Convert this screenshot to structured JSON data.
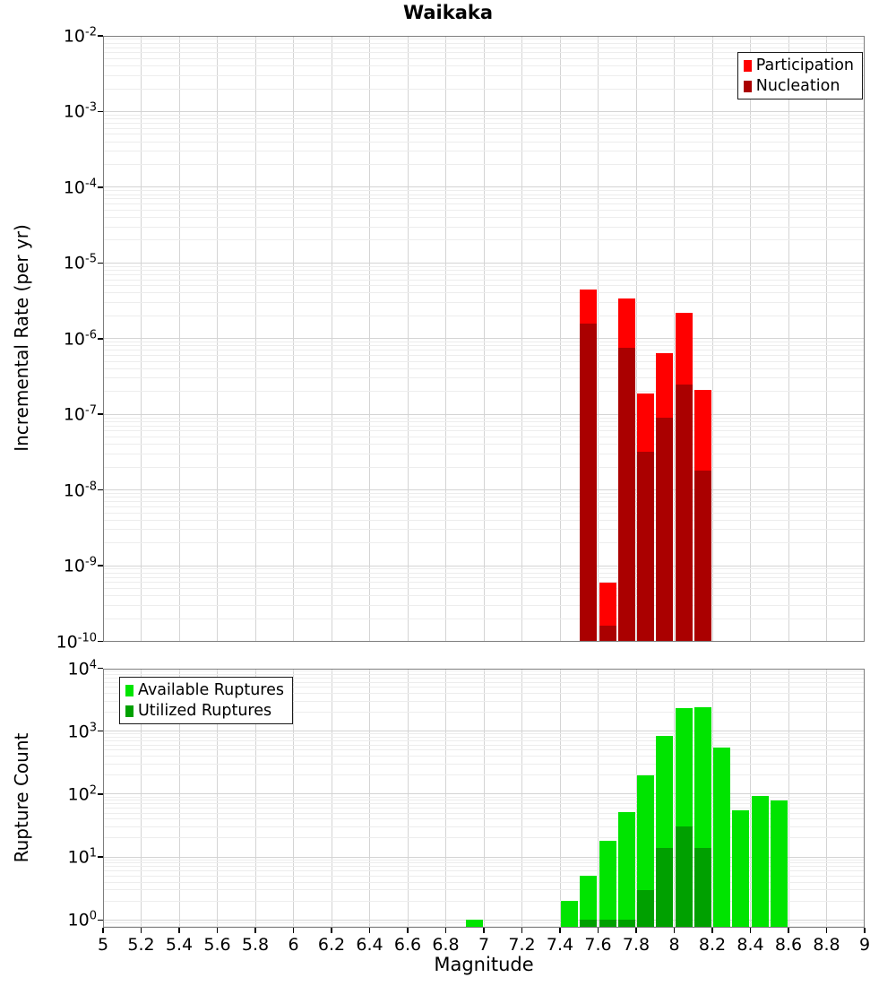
{
  "title": "Waikaka",
  "xlabel": "Magnitude",
  "chart_data": [
    {
      "type": "bar",
      "panel": "incremental-rate",
      "ylabel": "Incremental Rate (per yr)",
      "x_range": [
        5,
        9
      ],
      "y_range_log": [
        -10,
        -2
      ],
      "y_tick_exps": [
        -2,
        -3,
        -4,
        -5,
        -6,
        -7,
        -8,
        -9,
        -10
      ],
      "x_tick_values": [
        5,
        5.2,
        5.4,
        5.6,
        5.8,
        6,
        6.2,
        6.4,
        6.6,
        6.8,
        7,
        7.2,
        7.4,
        7.6,
        7.8,
        8,
        8.2,
        8.4,
        8.6,
        8.8,
        9
      ],
      "x_tick_labels": [
        "5",
        "5.2",
        "5.4",
        "5.6",
        "5.8",
        "6",
        "6.2",
        "6.4",
        "6.6",
        "6.8",
        "7",
        "7.2",
        "7.4",
        "7.6",
        "7.8",
        "8",
        "8.2",
        "8.4",
        "8.6",
        "8.8",
        "9"
      ],
      "show_x_tick_labels": false,
      "bin_width": 0.1,
      "legend_position": "top-right",
      "series": [
        {
          "name": "Participation",
          "color": "#ff0000",
          "x": [
            7.55,
            7.65,
            7.75,
            7.85,
            7.95,
            8.05,
            8.15
          ],
          "values": [
            4.4e-06,
            6e-10,
            3.4e-06,
            1.9e-07,
            6.5e-07,
            2.2e-06,
            2.1e-07
          ]
        },
        {
          "name": "Nucleation",
          "color": "#aa0000",
          "x": [
            7.55,
            7.65,
            7.75,
            7.85,
            7.95,
            8.05,
            8.15
          ],
          "values": [
            1.6e-06,
            1.6e-10,
            7.5e-07,
            3.2e-08,
            9e-08,
            2.5e-07,
            1.8e-08
          ]
        }
      ]
    },
    {
      "type": "bar",
      "panel": "rupture-count",
      "ylabel": "Rupture Count",
      "xlabel": "Magnitude",
      "x_range": [
        5,
        9
      ],
      "y_range_log": [
        -0.117,
        4
      ],
      "y_tick_exps": [
        4,
        3,
        2,
        1,
        0
      ],
      "x_tick_values": [
        5,
        5.2,
        5.4,
        5.6,
        5.8,
        6,
        6.2,
        6.4,
        6.6,
        6.8,
        7,
        7.2,
        7.4,
        7.6,
        7.8,
        8,
        8.2,
        8.4,
        8.6,
        8.8,
        9
      ],
      "x_tick_labels": [
        "5",
        "5.2",
        "5.4",
        "5.6",
        "5.8",
        "6",
        "6.2",
        "6.4",
        "6.6",
        "6.8",
        "7",
        "7.2",
        "7.4",
        "7.6",
        "7.8",
        "8",
        "8.2",
        "8.4",
        "8.6",
        "8.8",
        "9"
      ],
      "show_x_tick_labels": true,
      "bin_width": 0.1,
      "legend_position": "top-left",
      "series": [
        {
          "name": "Available Ruptures",
          "color": "#00e400",
          "x": [
            6.95,
            7.45,
            7.55,
            7.65,
            7.75,
            7.85,
            7.95,
            8.05,
            8.15,
            8.25,
            8.35,
            8.45,
            8.55
          ],
          "values": [
            1,
            2,
            5,
            18,
            52,
            200,
            830,
            2300,
            2400,
            540,
            56,
            93,
            80
          ]
        },
        {
          "name": "Utilized Ruptures",
          "color": "#00a000",
          "x": [
            7.55,
            7.65,
            7.75,
            7.85,
            7.95,
            8.05,
            8.15
          ],
          "values": [
            1,
            1,
            1,
            3,
            14,
            31,
            14
          ]
        }
      ]
    }
  ],
  "colors": {
    "participation": "#ff0000",
    "nucleation": "#aa0000",
    "available": "#00e400",
    "utilized": "#00a000",
    "grid_major": "#d4d4d4",
    "grid_minor": "#ededed",
    "frame": "#7d7d7d"
  }
}
